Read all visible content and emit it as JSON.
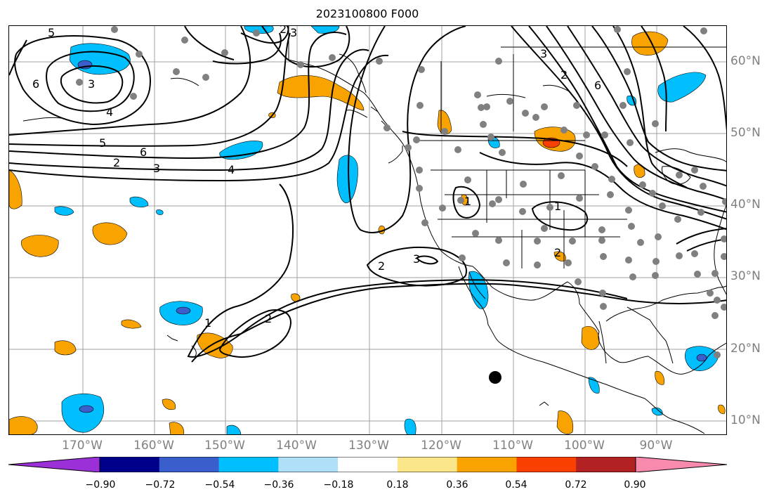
{
  "title": "2023100800 F000",
  "latitude_labels": [
    "60°N",
    "50°N",
    "40°N",
    "30°N",
    "20°N",
    "10°N"
  ],
  "longitude_labels": [
    "170°W",
    "160°W",
    "150°W",
    "140°W",
    "130°W",
    "120°W",
    "110°W",
    "100°W",
    "90°W"
  ],
  "contour_labels": [
    "5",
    "6",
    "3",
    "4",
    "2",
    "3",
    "5",
    "6",
    "2",
    "3",
    "4",
    "2",
    "3",
    "1",
    "2",
    "1",
    "2",
    "3",
    "6",
    "1",
    "2"
  ],
  "colorbar": {
    "ticks": [
      "−0.90",
      "−0.72",
      "−0.54",
      "−0.36",
      "−0.18",
      "0.18",
      "0.36",
      "0.54",
      "0.72",
      "0.90"
    ],
    "colors": [
      "#9b30d9",
      "#00008b",
      "#3a5fcd",
      "#00bfff",
      "#b0e0f8",
      "#ffffff",
      "#fce68a",
      "#f9a300",
      "#f94000",
      "#b22222",
      "#f88aae"
    ]
  }
}
